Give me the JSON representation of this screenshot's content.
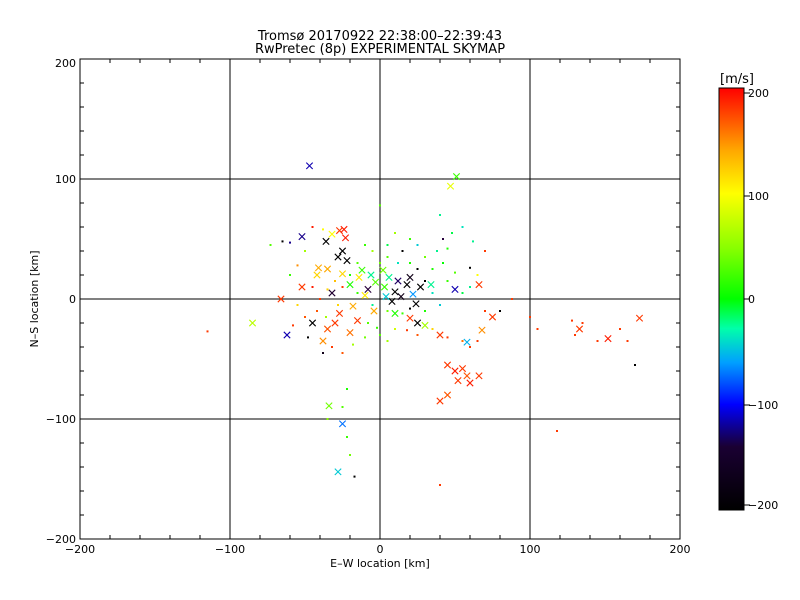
{
  "chart_data": {
    "type": "scatter",
    "title": "Tromsø 20170922 22:38:00–22:39:43",
    "subtitle": "RwPretec (8p) EXPERIMENTAL SKYMAP",
    "xlabel": "E–W location [km]",
    "ylabel": "N–S location [km]",
    "xlim": [
      -200,
      200
    ],
    "ylim": [
      -200,
      200
    ],
    "xticks": [
      "−200",
      "−100",
      "0",
      "100",
      "200"
    ],
    "yticks": [
      "−200",
      "−100",
      "0",
      "100",
      "200"
    ],
    "grid": true,
    "colorbar": {
      "label": "[m/s]",
      "range": [
        -200,
        200
      ],
      "ticks": [
        "200",
        "100",
        "0",
        "−100",
        "−200"
      ]
    },
    "markers": [
      {
        "x": -47,
        "y": 111,
        "v": -120,
        "m": "x"
      },
      {
        "x": 51,
        "y": 102,
        "v": 20,
        "m": "x"
      },
      {
        "x": 47,
        "y": 94,
        "v": 90,
        "m": "x"
      },
      {
        "x": -27,
        "y": 57,
        "v": 180,
        "m": "x"
      },
      {
        "x": -32,
        "y": 54,
        "v": 100,
        "m": "x"
      },
      {
        "x": -23,
        "y": 51,
        "v": 190,
        "m": "x"
      },
      {
        "x": -52,
        "y": 52,
        "v": -130,
        "m": "x"
      },
      {
        "x": -36,
        "y": 48,
        "v": -200,
        "m": "x"
      },
      {
        "x": -25,
        "y": 40,
        "v": -200,
        "m": "x"
      },
      {
        "x": -28,
        "y": 35,
        "v": -210,
        "m": "x"
      },
      {
        "x": -22,
        "y": 32,
        "v": -200,
        "m": "x"
      },
      {
        "x": -41,
        "y": 26,
        "v": 140,
        "m": "x"
      },
      {
        "x": -35,
        "y": 25,
        "v": 140,
        "m": "x"
      },
      {
        "x": -25,
        "y": 21,
        "v": 120,
        "m": "x"
      },
      {
        "x": -14,
        "y": 18,
        "v": 110,
        "m": "x"
      },
      {
        "x": -52,
        "y": 10,
        "v": 180,
        "m": "x"
      },
      {
        "x": -66,
        "y": 0,
        "v": 180,
        "m": "x"
      },
      {
        "x": -32,
        "y": 5,
        "v": -160,
        "m": "x"
      },
      {
        "x": -20,
        "y": 12,
        "v": 10,
        "m": "x"
      },
      {
        "x": -8,
        "y": 8,
        "v": -150,
        "m": "x"
      },
      {
        "x": -3,
        "y": 14,
        "v": 30,
        "m": "x"
      },
      {
        "x": 3,
        "y": 10,
        "v": 20,
        "m": "x"
      },
      {
        "x": 6,
        "y": 18,
        "v": -20,
        "m": "x"
      },
      {
        "x": 10,
        "y": 6,
        "v": -220,
        "m": "x"
      },
      {
        "x": 14,
        "y": 2,
        "v": -180,
        "m": "x"
      },
      {
        "x": 18,
        "y": 12,
        "v": -200,
        "m": "x"
      },
      {
        "x": 22,
        "y": 4,
        "v": -60,
        "m": "x"
      },
      {
        "x": 27,
        "y": 10,
        "v": -200,
        "m": "x"
      },
      {
        "x": 12,
        "y": 15,
        "v": -140,
        "m": "x"
      },
      {
        "x": 8,
        "y": -2,
        "v": -200,
        "m": "x"
      },
      {
        "x": 50,
        "y": 8,
        "v": -120,
        "m": "x"
      },
      {
        "x": 66,
        "y": 12,
        "v": 180,
        "m": "x"
      },
      {
        "x": 75,
        "y": -15,
        "v": 180,
        "m": "x"
      },
      {
        "x": 68,
        "y": -26,
        "v": 150,
        "m": "x"
      },
      {
        "x": -24,
        "y": 58,
        "v": 190,
        "m": "x"
      },
      {
        "x": -10,
        "y": 3,
        "v": 110,
        "m": "x"
      },
      {
        "x": -4,
        "y": -10,
        "v": 140,
        "m": "x"
      },
      {
        "x": -15,
        "y": -18,
        "v": 180,
        "m": "x"
      },
      {
        "x": -30,
        "y": -20,
        "v": 180,
        "m": "x"
      },
      {
        "x": -35,
        "y": -25,
        "v": 170,
        "m": "x"
      },
      {
        "x": -45,
        "y": -20,
        "v": -200,
        "m": "x"
      },
      {
        "x": -38,
        "y": -35,
        "v": 150,
        "m": "x"
      },
      {
        "x": -62,
        "y": -30,
        "v": -120,
        "m": "x"
      },
      {
        "x": -85,
        "y": -20,
        "v": 70,
        "m": "x"
      },
      {
        "x": 25,
        "y": -20,
        "v": -200,
        "m": "x"
      },
      {
        "x": 30,
        "y": -22,
        "v": 60,
        "m": "x"
      },
      {
        "x": 20,
        "y": -16,
        "v": 180,
        "m": "x"
      },
      {
        "x": 45,
        "y": -55,
        "v": 180,
        "m": "x"
      },
      {
        "x": 50,
        "y": -60,
        "v": 190,
        "m": "x"
      },
      {
        "x": 55,
        "y": -58,
        "v": 180,
        "m": "x"
      },
      {
        "x": 58,
        "y": -64,
        "v": 170,
        "m": "x"
      },
      {
        "x": 52,
        "y": -68,
        "v": 180,
        "m": "x"
      },
      {
        "x": 60,
        "y": -70,
        "v": 190,
        "m": "x"
      },
      {
        "x": 66,
        "y": -64,
        "v": 180,
        "m": "x"
      },
      {
        "x": 40,
        "y": -85,
        "v": 180,
        "m": "x"
      },
      {
        "x": 45,
        "y": -80,
        "v": 170,
        "m": "x"
      },
      {
        "x": 58,
        "y": -36,
        "v": -50,
        "m": "x"
      },
      {
        "x": 133,
        "y": -25,
        "v": 180,
        "m": "x"
      },
      {
        "x": 152,
        "y": -33,
        "v": 190,
        "m": "x"
      },
      {
        "x": 173,
        "y": -16,
        "v": 180,
        "m": "x"
      },
      {
        "x": -34,
        "y": -89,
        "v": 40,
        "m": "x"
      },
      {
        "x": -25,
        "y": -104,
        "v": -70,
        "m": "x"
      },
      {
        "x": -28,
        "y": -144,
        "v": -40,
        "m": "x"
      },
      {
        "x": -42,
        "y": 20,
        "v": 120,
        "m": "x"
      },
      {
        "x": -12,
        "y": 24,
        "v": 20,
        "m": "x"
      },
      {
        "x": 2,
        "y": 24,
        "v": 40,
        "m": "x"
      },
      {
        "x": 34,
        "y": 12,
        "v": -20,
        "m": "x"
      },
      {
        "x": 10,
        "y": -12,
        "v": 10,
        "m": "x"
      },
      {
        "x": -18,
        "y": -6,
        "v": 140,
        "m": "x"
      },
      {
        "x": -27,
        "y": -12,
        "v": 180,
        "m": "x"
      },
      {
        "x": 20,
        "y": 18,
        "v": -180,
        "m": "x"
      },
      {
        "x": 24,
        "y": -4,
        "v": -210,
        "m": "x"
      },
      {
        "x": 4,
        "y": 2,
        "v": -40,
        "m": "x"
      },
      {
        "x": -6,
        "y": 20,
        "v": -20,
        "m": "x"
      },
      {
        "x": 40,
        "y": -30,
        "v": 180,
        "m": "x"
      },
      {
        "x": -20,
        "y": -28,
        "v": 160,
        "m": "x"
      },
      {
        "x": -115,
        "y": -27,
        "v": 180,
        "m": "dot"
      },
      {
        "x": -73,
        "y": 45,
        "v": 30,
        "m": "dot"
      },
      {
        "x": -65,
        "y": 48,
        "v": -200,
        "m": "dot"
      },
      {
        "x": -60,
        "y": 47,
        "v": -130,
        "m": "dot"
      },
      {
        "x": -50,
        "y": 40,
        "v": 60,
        "m": "dot"
      },
      {
        "x": -55,
        "y": 28,
        "v": 150,
        "m": "dot"
      },
      {
        "x": -60,
        "y": 20,
        "v": 20,
        "m": "dot"
      },
      {
        "x": -45,
        "y": 10,
        "v": 190,
        "m": "dot"
      },
      {
        "x": -58,
        "y": -22,
        "v": 180,
        "m": "dot"
      },
      {
        "x": -48,
        "y": -32,
        "v": -200,
        "m": "dot"
      },
      {
        "x": -38,
        "y": -45,
        "v": -180,
        "m": "dot"
      },
      {
        "x": -32,
        "y": -40,
        "v": 180,
        "m": "dot"
      },
      {
        "x": -25,
        "y": -45,
        "v": 170,
        "m": "dot"
      },
      {
        "x": -18,
        "y": -38,
        "v": 60,
        "m": "dot"
      },
      {
        "x": -10,
        "y": -32,
        "v": 40,
        "m": "dot"
      },
      {
        "x": 0,
        "y": -30,
        "v": 30,
        "m": "dot"
      },
      {
        "x": 5,
        "y": -35,
        "v": 60,
        "m": "dot"
      },
      {
        "x": 18,
        "y": -26,
        "v": 180,
        "m": "dot"
      },
      {
        "x": 35,
        "y": -25,
        "v": 120,
        "m": "dot"
      },
      {
        "x": 45,
        "y": -32,
        "v": 180,
        "m": "dot"
      },
      {
        "x": 55,
        "y": -35,
        "v": 160,
        "m": "dot"
      },
      {
        "x": 60,
        "y": -40,
        "v": 180,
        "m": "dot"
      },
      {
        "x": 65,
        "y": -35,
        "v": 180,
        "m": "dot"
      },
      {
        "x": 70,
        "y": -10,
        "v": 180,
        "m": "dot"
      },
      {
        "x": 80,
        "y": -10,
        "v": -200,
        "m": "dot"
      },
      {
        "x": 88,
        "y": 0,
        "v": 180,
        "m": "dot"
      },
      {
        "x": 100,
        "y": -15,
        "v": 180,
        "m": "dot"
      },
      {
        "x": 105,
        "y": -25,
        "v": 180,
        "m": "dot"
      },
      {
        "x": 128,
        "y": -18,
        "v": 180,
        "m": "dot"
      },
      {
        "x": 130,
        "y": -30,
        "v": 180,
        "m": "dot"
      },
      {
        "x": 135,
        "y": -20,
        "v": 180,
        "m": "dot"
      },
      {
        "x": 145,
        "y": -35,
        "v": 180,
        "m": "dot"
      },
      {
        "x": 160,
        "y": -25,
        "v": 180,
        "m": "dot"
      },
      {
        "x": 165,
        "y": -35,
        "v": 180,
        "m": "dot"
      },
      {
        "x": 170,
        "y": -55,
        "v": -200,
        "m": "dot"
      },
      {
        "x": 118,
        "y": -110,
        "v": 180,
        "m": "dot"
      },
      {
        "x": 40,
        "y": -155,
        "v": 180,
        "m": "dot"
      },
      {
        "x": -17,
        "y": -148,
        "v": -200,
        "m": "dot"
      },
      {
        "x": -20,
        "y": -130,
        "v": 40,
        "m": "dot"
      },
      {
        "x": -22,
        "y": -115,
        "v": 20,
        "m": "dot"
      },
      {
        "x": -25,
        "y": -90,
        "v": 30,
        "m": "dot"
      },
      {
        "x": -22,
        "y": -75,
        "v": 10,
        "m": "dot"
      },
      {
        "x": -35,
        "y": -100,
        "v": 50,
        "m": "dot"
      },
      {
        "x": 0,
        "y": 78,
        "v": 30,
        "m": "dot"
      },
      {
        "x": 40,
        "y": 70,
        "v": -20,
        "m": "dot"
      },
      {
        "x": 55,
        "y": 60,
        "v": -30,
        "m": "dot"
      },
      {
        "x": 48,
        "y": 55,
        "v": -10,
        "m": "dot"
      },
      {
        "x": 42,
        "y": 50,
        "v": -150,
        "m": "dot"
      },
      {
        "x": 45,
        "y": 42,
        "v": 10,
        "m": "dot"
      },
      {
        "x": 38,
        "y": 40,
        "v": -20,
        "m": "dot"
      },
      {
        "x": 30,
        "y": 35,
        "v": 40,
        "m": "dot"
      },
      {
        "x": 25,
        "y": 45,
        "v": -40,
        "m": "dot"
      },
      {
        "x": 20,
        "y": 50,
        "v": 20,
        "m": "dot"
      },
      {
        "x": 15,
        "y": 40,
        "v": -200,
        "m": "dot"
      },
      {
        "x": 10,
        "y": 55,
        "v": 60,
        "m": "dot"
      },
      {
        "x": 5,
        "y": 35,
        "v": 30,
        "m": "dot"
      },
      {
        "x": 42,
        "y": 30,
        "v": 0,
        "m": "dot"
      },
      {
        "x": 50,
        "y": 22,
        "v": 30,
        "m": "dot"
      },
      {
        "x": 60,
        "y": 26,
        "v": -200,
        "m": "dot"
      },
      {
        "x": 65,
        "y": 20,
        "v": 100,
        "m": "dot"
      },
      {
        "x": 60,
        "y": 10,
        "v": -20,
        "m": "dot"
      },
      {
        "x": 55,
        "y": 5,
        "v": -10,
        "m": "dot"
      },
      {
        "x": 45,
        "y": 15,
        "v": 20,
        "m": "dot"
      },
      {
        "x": 35,
        "y": 25,
        "v": 10,
        "m": "dot"
      },
      {
        "x": 30,
        "y": 15,
        "v": -200,
        "m": "dot"
      },
      {
        "x": 35,
        "y": 5,
        "v": -30,
        "m": "dot"
      },
      {
        "x": 40,
        "y": -5,
        "v": -40,
        "m": "dot"
      },
      {
        "x": 30,
        "y": -10,
        "v": 10,
        "m": "dot"
      },
      {
        "x": 20,
        "y": -8,
        "v": -200,
        "m": "dot"
      },
      {
        "x": 15,
        "y": -12,
        "v": 20,
        "m": "dot"
      },
      {
        "x": 5,
        "y": -10,
        "v": 40,
        "m": "dot"
      },
      {
        "x": -5,
        "y": -5,
        "v": -20,
        "m": "dot"
      },
      {
        "x": -15,
        "y": 5,
        "v": 20,
        "m": "dot"
      },
      {
        "x": -20,
        "y": 20,
        "v": 10,
        "m": "dot"
      },
      {
        "x": -25,
        "y": 10,
        "v": 180,
        "m": "dot"
      },
      {
        "x": -30,
        "y": 15,
        "v": 130,
        "m": "dot"
      },
      {
        "x": -35,
        "y": 8,
        "v": 120,
        "m": "dot"
      },
      {
        "x": -40,
        "y": 0,
        "v": 180,
        "m": "dot"
      },
      {
        "x": -42,
        "y": -10,
        "v": 170,
        "m": "dot"
      },
      {
        "x": -36,
        "y": -15,
        "v": 60,
        "m": "dot"
      },
      {
        "x": -28,
        "y": -5,
        "v": 120,
        "m": "dot"
      },
      {
        "x": -15,
        "y": 30,
        "v": 30,
        "m": "dot"
      },
      {
        "x": -5,
        "y": 40,
        "v": 60,
        "m": "dot"
      },
      {
        "x": 5,
        "y": 45,
        "v": -10,
        "m": "dot"
      },
      {
        "x": -10,
        "y": 45,
        "v": 20,
        "m": "dot"
      },
      {
        "x": 0,
        "y": 30,
        "v": 40,
        "m": "dot"
      },
      {
        "x": 12,
        "y": 30,
        "v": -30,
        "m": "dot"
      },
      {
        "x": 20,
        "y": 30,
        "v": 10,
        "m": "dot"
      },
      {
        "x": 25,
        "y": 25,
        "v": -200,
        "m": "dot"
      },
      {
        "x": -8,
        "y": -20,
        "v": 30,
        "m": "dot"
      },
      {
        "x": -2,
        "y": -24,
        "v": 20,
        "m": "dot"
      },
      {
        "x": 25,
        "y": -30,
        "v": 170,
        "m": "dot"
      },
      {
        "x": 10,
        "y": -25,
        "v": 80,
        "m": "dot"
      },
      {
        "x": -55,
        "y": -5,
        "v": 120,
        "m": "dot"
      },
      {
        "x": -50,
        "y": -15,
        "v": 170,
        "m": "dot"
      },
      {
        "x": -38,
        "y": 58,
        "v": 100,
        "m": "dot"
      },
      {
        "x": -45,
        "y": 60,
        "v": 190,
        "m": "dot"
      },
      {
        "x": 62,
        "y": 48,
        "v": -20,
        "m": "dot"
      },
      {
        "x": 70,
        "y": 40,
        "v": 180,
        "m": "dot"
      }
    ]
  }
}
